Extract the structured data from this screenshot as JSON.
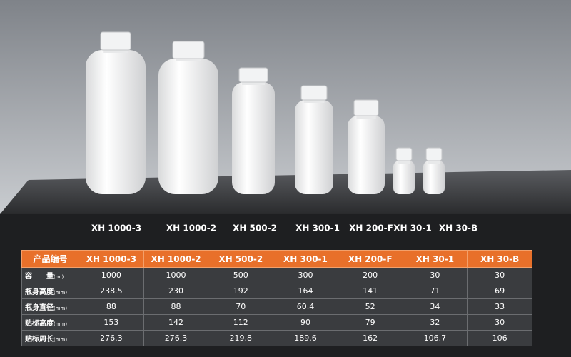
{
  "bottle_labels": [
    "XH 1000-3",
    "XH 1000-2",
    "XH 500-2",
    "XH 300-1",
    "XH 200-F",
    "XH 30-1",
    "XH 30-B"
  ],
  "table": {
    "header": [
      "产品编号",
      "XH 1000-3",
      "XH 1000-2",
      "XH 500-2",
      "XH 300-1",
      "XH 200-F",
      "XH 30-1",
      "XH 30-B"
    ],
    "rows": [
      {
        "label": "容　　量",
        "unit": "(ml)",
        "values": [
          1000,
          1000,
          500,
          300,
          200,
          30,
          30
        ]
      },
      {
        "label": "瓶身高度",
        "unit": "(mm)",
        "values": [
          238.5,
          230,
          192,
          164,
          141,
          71,
          69
        ]
      },
      {
        "label": "瓶身直径",
        "unit": "(mm)",
        "values": [
          88,
          88,
          70,
          60.4,
          52,
          34,
          33
        ]
      },
      {
        "label": "贴标高度",
        "unit": "(mm)",
        "values": [
          153,
          142,
          112,
          90,
          79,
          32,
          30
        ]
      },
      {
        "label": "贴标周长",
        "unit": "(mm)",
        "values": [
          276.3,
          276.3,
          219.8,
          189.6,
          162,
          106.7,
          106
        ]
      }
    ]
  }
}
